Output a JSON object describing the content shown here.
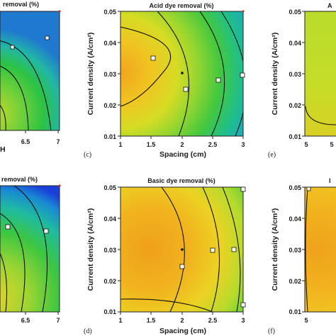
{
  "chart_data": [
    {
      "id": "panel-a",
      "type": "heatmap",
      "title": "removal (%)",
      "xlabel": "H",
      "ylabel": "",
      "x_ticks": [
        "6.5",
        "7"
      ],
      "y_ticks": [],
      "panel_label": ""
    },
    {
      "id": "panel-c",
      "type": "heatmap",
      "title": "Acid dye removal (%)",
      "xlabel": "Spacing (cm)",
      "ylabel": "Current density (A/cm²)",
      "x_ticks": [
        "1",
        "1.5",
        "2",
        "2.5",
        "3"
      ],
      "y_ticks": [
        "0.01",
        "0.02",
        "0.03",
        "0.04",
        "0.05"
      ],
      "xlim": [
        1,
        3
      ],
      "ylim": [
        0.01,
        0.05
      ],
      "peak": {
        "x": 1.05,
        "y": 0.031
      },
      "design_point": {
        "x": 2,
        "y": 0.03
      },
      "contour_markers": [
        {
          "x": 1.5,
          "y": 0.031
        },
        {
          "x": 2.1,
          "y": 0.025
        },
        {
          "x": 2.55,
          "y": 0.028
        },
        {
          "x": 2.95,
          "y": 0.029
        },
        {
          "x": 2.92,
          "y": 0.046
        }
      ],
      "panel_label": "(c)"
    },
    {
      "id": "panel-e",
      "type": "heatmap",
      "title": "A",
      "xlabel": "",
      "ylabel": "Current density (A/cm²)",
      "x_ticks": [
        "5",
        "5"
      ],
      "y_ticks": [
        "0.01",
        "0.02",
        "0.03",
        "0.04",
        "0.05"
      ],
      "panel_label": "(e)"
    },
    {
      "id": "panel-b",
      "type": "heatmap",
      "title": "removal (%)",
      "xlabel": "",
      "ylabel": "",
      "x_ticks": [
        "6.5",
        "7"
      ],
      "y_ticks": [],
      "panel_label": ""
    },
    {
      "id": "panel-d",
      "type": "heatmap",
      "title": "Basic dye removal (%)",
      "xlabel": "Spacing (cm)",
      "ylabel": "Current density (A/cm²)",
      "x_ticks": [
        "1",
        "1.5",
        "2",
        "2.5",
        "3"
      ],
      "y_ticks": [
        "0.01",
        "0.02",
        "0.03",
        "0.04",
        "0.05"
      ],
      "xlim": [
        1,
        3
      ],
      "ylim": [
        0.01,
        0.05
      ],
      "peak": {
        "x": 1.4,
        "y": 0.031
      },
      "design_point": {
        "x": 2,
        "y": 0.03
      },
      "contour_markers": [
        {
          "x": 2,
          "y": 0.025
        },
        {
          "x": 2.45,
          "y": 0.03
        },
        {
          "x": 2.78,
          "y": 0.03
        },
        {
          "x": 2.98,
          "y": 0.012
        },
        {
          "x": 2.98,
          "y": 0.049
        }
      ],
      "panel_label": "(d)"
    },
    {
      "id": "panel-f",
      "type": "heatmap",
      "title": "I",
      "xlabel": "",
      "ylabel": "Current density (A/cm²)",
      "x_ticks": [
        "5"
      ],
      "y_ticks": [
        "0.01",
        "0.02",
        "0.03",
        "0.04",
        "0.05"
      ],
      "panel_label": "(f)"
    }
  ],
  "colors": {
    "hot": "#f2a41a",
    "warm": "#f0df22",
    "mid": "#8fd633",
    "green": "#28c43a",
    "cyan": "#1ab3b8",
    "blue": "#1a58d8"
  }
}
